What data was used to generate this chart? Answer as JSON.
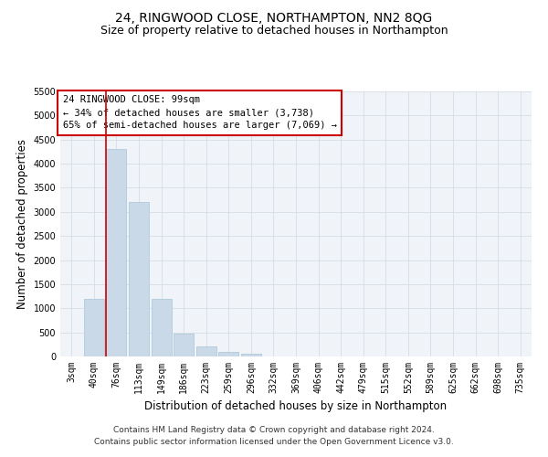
{
  "title": "24, RINGWOOD CLOSE, NORTHAMPTON, NN2 8QG",
  "subtitle": "Size of property relative to detached houses in Northampton",
  "xlabel": "Distribution of detached houses by size in Northampton",
  "ylabel": "Number of detached properties",
  "footer_line1": "Contains HM Land Registry data © Crown copyright and database right 2024.",
  "footer_line2": "Contains public sector information licensed under the Open Government Licence v3.0.",
  "bar_labels": [
    "3sqm",
    "40sqm",
    "76sqm",
    "113sqm",
    "149sqm",
    "186sqm",
    "223sqm",
    "259sqm",
    "296sqm",
    "332sqm",
    "369sqm",
    "406sqm",
    "442sqm",
    "479sqm",
    "515sqm",
    "552sqm",
    "589sqm",
    "625sqm",
    "662sqm",
    "698sqm",
    "735sqm"
  ],
  "bar_values": [
    0,
    1200,
    4300,
    3200,
    1200,
    470,
    200,
    90,
    60,
    0,
    0,
    0,
    0,
    0,
    0,
    0,
    0,
    0,
    0,
    0,
    0
  ],
  "bar_color": "#c9d9e8",
  "bar_edge_color": "#a8c4d8",
  "grid_color": "#d0d8e0",
  "annotation_box_color": "#cc0000",
  "annotation_text": "24 RINGWOOD CLOSE: 99sqm\n← 34% of detached houses are smaller (3,738)\n65% of semi-detached houses are larger (7,069) →",
  "vline_color": "#cc0000",
  "vline_x": 1.55,
  "ylim": [
    0,
    5500
  ],
  "yticks": [
    0,
    500,
    1000,
    1500,
    2000,
    2500,
    3000,
    3500,
    4000,
    4500,
    5000,
    5500
  ],
  "title_fontsize": 10,
  "subtitle_fontsize": 9,
  "xlabel_fontsize": 8.5,
  "ylabel_fontsize": 8.5,
  "tick_fontsize": 7,
  "annotation_fontsize": 7.5,
  "footer_fontsize": 6.5,
  "bg_color": "#f0f4f8"
}
